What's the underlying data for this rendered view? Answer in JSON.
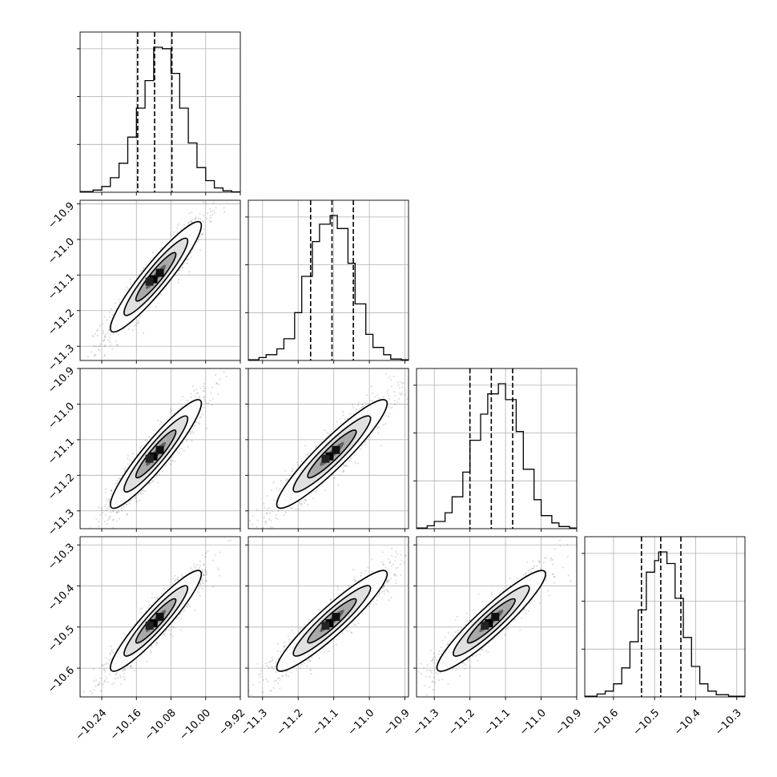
{
  "chart_data": {
    "type": "corner",
    "title": "",
    "grid": true,
    "parameters": [
      {
        "mean": -10.115,
        "sd": 0.042,
        "lim": [
          -10.29,
          -9.92
        ],
        "ticks": [
          -10.24,
          -10.16,
          -10.08,
          -10.0,
          -9.92
        ],
        "tick_labels": [
          "−10.24",
          "−10.16",
          "−10.08",
          "−10.00",
          "−9.92"
        ],
        "quantiles": [
          -10.157,
          -10.118,
          -10.078
        ]
      },
      {
        "mean": -11.105,
        "sd": 0.062,
        "lim": [
          -11.34,
          -10.89
        ],
        "ticks": [
          -11.3,
          -11.2,
          -11.1,
          -11.0,
          -10.9
        ],
        "tick_labels": [
          "−11.3",
          "−11.2",
          "−11.1",
          "−11.0",
          "−10.9"
        ],
        "quantiles": [
          -11.165,
          -11.105,
          -11.045
        ]
      },
      {
        "mean": -11.14,
        "sd": 0.061,
        "lim": [
          -11.35,
          -10.9
        ],
        "ticks": [
          -11.3,
          -11.2,
          -11.1,
          -11.0,
          -10.9
        ],
        "tick_labels": [
          "−11.3",
          "−11.2",
          "−11.1",
          "−11.0",
          "−10.9"
        ],
        "quantiles": [
          -11.2,
          -11.14,
          -11.08
        ]
      },
      {
        "mean": -10.485,
        "sd": 0.049,
        "lim": [
          -10.67,
          -10.28
        ],
        "ticks": [
          -10.6,
          -10.5,
          -10.4,
          -10.3
        ],
        "tick_labels": [
          "−10.6",
          "−10.5",
          "−10.4",
          "−10.3"
        ],
        "quantiles": [
          -10.532,
          -10.485,
          -10.436
        ]
      }
    ],
    "correlation": 0.93,
    "histograms": [
      {
        "bin_edges": [
          -10.29,
          -10.26,
          -10.24,
          -10.22,
          -10.2,
          -10.18,
          -10.16,
          -10.14,
          -10.12,
          -10.1,
          -10.08,
          -10.06,
          -10.04,
          -10.02,
          -10.0,
          -9.98,
          -9.96,
          -9.94,
          -9.92
        ],
        "counts": [
          0.5,
          1.5,
          4,
          10,
          20,
          38,
          58,
          77,
          100,
          99,
          82,
          58,
          34,
          17,
          8,
          3,
          1,
          0.3
        ]
      },
      {
        "bin_edges": [
          -11.34,
          -11.31,
          -11.29,
          -11.26,
          -11.24,
          -11.21,
          -11.19,
          -11.16,
          -11.14,
          -11.11,
          -11.09,
          -11.06,
          -11.04,
          -11.01,
          -10.99,
          -10.96,
          -10.94,
          -10.91,
          -10.89
        ],
        "counts": [
          0.5,
          2,
          4,
          8,
          15,
          33,
          58,
          82,
          94,
          100,
          91,
          67,
          39,
          18,
          9,
          4,
          1,
          0.5
        ]
      },
      {
        "bin_edges": [
          -11.35,
          -11.32,
          -11.3,
          -11.27,
          -11.25,
          -11.22,
          -11.2,
          -11.17,
          -11.15,
          -11.12,
          -11.1,
          -11.07,
          -11.05,
          -11.02,
          -11.0,
          -10.97,
          -10.95,
          -10.92,
          -10.9
        ],
        "counts": [
          0.5,
          2,
          5,
          11,
          22,
          39,
          61,
          79,
          93,
          100,
          89,
          67,
          41,
          20,
          9,
          4,
          1.5,
          0.5
        ]
      },
      {
        "bin_edges": [
          -10.67,
          -10.64,
          -10.62,
          -10.6,
          -10.58,
          -10.56,
          -10.54,
          -10.52,
          -10.5,
          -10.49,
          -10.47,
          -10.45,
          -10.43,
          -10.41,
          -10.39,
          -10.37,
          -10.35,
          -10.32,
          -10.28
        ],
        "counts": [
          0.5,
          2,
          4,
          9,
          20,
          38,
          60,
          86,
          94,
          100,
          92,
          68,
          41,
          21,
          9,
          4,
          1.5,
          0.5
        ]
      }
    ]
  }
}
